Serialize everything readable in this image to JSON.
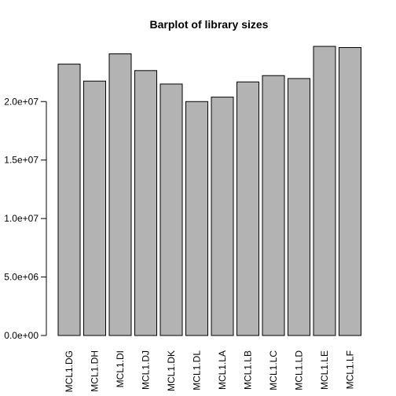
{
  "chart_data": {
    "type": "bar",
    "title": "Barplot of library sizes",
    "xlabel": "",
    "ylabel": "",
    "categories": [
      "MCL1.DG",
      "MCL1.DH",
      "MCL1.DI",
      "MCL1.DJ",
      "MCL1.DK",
      "MCL1.DL",
      "MCL1.LA",
      "MCL1.LB",
      "MCL1.LC",
      "MCL1.LD",
      "MCL1.LE",
      "MCL1.LF"
    ],
    "values": [
      23200000,
      21750000,
      24080000,
      22650000,
      21500000,
      20000000,
      20380000,
      21680000,
      22220000,
      21970000,
      24720000,
      24620000
    ],
    "ylim": [
      0,
      24720000
    ],
    "yticks": [
      0,
      5000000,
      10000000,
      15000000,
      20000000
    ],
    "ytick_labels": [
      "0.0e+00",
      "5.0e+06",
      "1.0e+07",
      "1.5e+07",
      "2.0e+07"
    ],
    "bar_color": "#b3b3b3",
    "grid": false,
    "legend": "none"
  }
}
